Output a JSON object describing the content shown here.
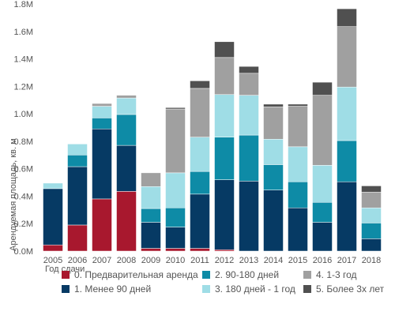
{
  "chart_data": {
    "type": "bar",
    "stacked": true,
    "categories": [
      "2005",
      "2006",
      "2007",
      "2008",
      "2009",
      "2010",
      "2011",
      "2012",
      "2013",
      "2014",
      "2015",
      "2016",
      "2017",
      "2018"
    ],
    "xlabel": "Год сдачи",
    "ylabel": "Арендуемая площадь, кв. м",
    "ylim": [
      0,
      1800000
    ],
    "yticks": [
      0,
      200000,
      400000,
      600000,
      800000,
      1000000,
      1200000,
      1400000,
      1600000,
      1800000
    ],
    "ytick_labels": [
      "0.0M",
      "0.2M",
      "0.4M",
      "0.6M",
      "0.8M",
      "1.0M",
      "1.2M",
      "1.4M",
      "1.6M",
      "1.8M"
    ],
    "grid": false,
    "legend_position": "bottom",
    "series": [
      {
        "name": "0. Предварительная аренда",
        "color": "#a8182e",
        "values": [
          45000,
          190000,
          380000,
          435000,
          20000,
          20000,
          20000,
          10000,
          0,
          0,
          0,
          0,
          0,
          0
        ]
      },
      {
        "name": "1. Менее 90 дней",
        "color": "#063a64",
        "values": [
          410000,
          425000,
          510000,
          335000,
          190000,
          155000,
          395000,
          510000,
          510000,
          445000,
          315000,
          210000,
          505000,
          90000
        ]
      },
      {
        "name": "2. 90-180 дней",
        "color": "#0e8ba6",
        "values": [
          0,
          85000,
          80000,
          225000,
          100000,
          140000,
          165000,
          310000,
          335000,
          185000,
          190000,
          145000,
          300000,
          115000
        ]
      },
      {
        "name": "3. 180 дней - 1 год",
        "color": "#9fdde6",
        "values": [
          40000,
          80000,
          85000,
          120000,
          160000,
          255000,
          250000,
          310000,
          290000,
          185000,
          255000,
          270000,
          390000,
          110000
        ]
      },
      {
        "name": "4. 1-3 год",
        "color": "#a0a0a0",
        "values": [
          0,
          0,
          20000,
          20000,
          100000,
          465000,
          355000,
          270000,
          160000,
          235000,
          295000,
          510000,
          440000,
          115000
        ]
      },
      {
        "name": "5. Более 3х лет",
        "color": "#505050",
        "values": [
          0,
          0,
          0,
          0,
          0,
          10000,
          55000,
          115000,
          50000,
          20000,
          15000,
          95000,
          130000,
          45000
        ]
      }
    ]
  }
}
